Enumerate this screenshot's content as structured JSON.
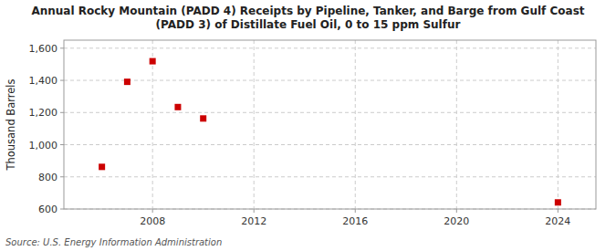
{
  "chart_data": {
    "type": "scatter",
    "title": "Annual Rocky Mountain (PADD 4) Receipts by Pipeline, Tanker, and Barge from Gulf Coast\n(PADD 3) of Distillate Fuel Oil, 0 to 15 ppm Sulfur",
    "ylabel": "Thousand Barrels",
    "annotations": [
      "Source: U.S. Energy Information Administration"
    ],
    "x": [
      2006,
      2007,
      2008,
      2009,
      2010,
      2024
    ],
    "values": [
      862,
      1391,
      1519,
      1234,
      1163,
      641
    ],
    "color": "#cc0000",
    "marker": "square",
    "xlim": [
      2004.5,
      2025.5
    ],
    "ylim": [
      600,
      1650
    ],
    "xticks": [
      2008,
      2012,
      2016,
      2020,
      2024
    ],
    "yticks": [
      600,
      800,
      {
        "value": 1000,
        "label": "1,000"
      },
      {
        "value": 1200,
        "label": "1,200"
      },
      {
        "value": 1400,
        "label": "1,400"
      },
      {
        "value": 1600,
        "label": "1,600"
      }
    ],
    "grid": true
  }
}
